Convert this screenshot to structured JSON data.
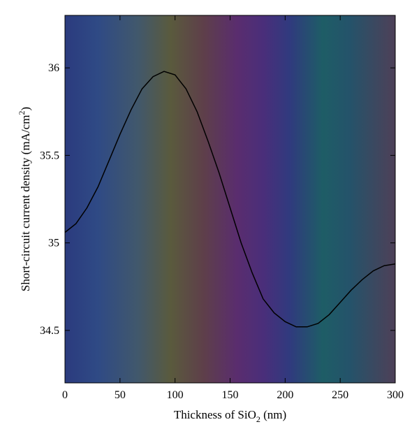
{
  "chart_data": {
    "type": "line",
    "xlabel_main": "Thickness of SiO",
    "xlabel_sub": "2",
    "xlabel_unit": " (nm)",
    "ylabel_main": "Short-circuit current density (mA/cm",
    "ylabel_sup": "2",
    "ylabel_end": ")",
    "xlim": [
      0,
      300
    ],
    "ylim": [
      34.2,
      36.3
    ],
    "xticks": [
      0,
      50,
      100,
      150,
      200,
      250,
      300
    ],
    "yticks": [
      34.5,
      35,
      35.5,
      36
    ],
    "xtick_labels": [
      "0",
      "50",
      "100",
      "150",
      "200",
      "250",
      "300"
    ],
    "ytick_labels": [
      "34.5",
      "35",
      "35.5",
      "36"
    ],
    "line_color": "#000000",
    "series": [
      {
        "x": [
          0,
          10,
          20,
          30,
          40,
          50,
          60,
          70,
          80,
          90,
          100,
          110,
          120,
          130,
          140,
          150,
          160,
          170,
          180,
          190,
          200,
          210,
          220,
          230,
          240,
          250,
          260,
          270,
          280,
          290,
          300
        ],
        "y": [
          35.06,
          35.11,
          35.2,
          35.32,
          35.47,
          35.62,
          35.76,
          35.88,
          35.95,
          35.98,
          35.96,
          35.88,
          35.75,
          35.58,
          35.4,
          35.2,
          35.0,
          34.83,
          34.68,
          34.6,
          34.55,
          34.52,
          34.52,
          34.54,
          34.59,
          34.66,
          34.73,
          34.79,
          34.84,
          34.87,
          34.88
        ]
      }
    ]
  }
}
